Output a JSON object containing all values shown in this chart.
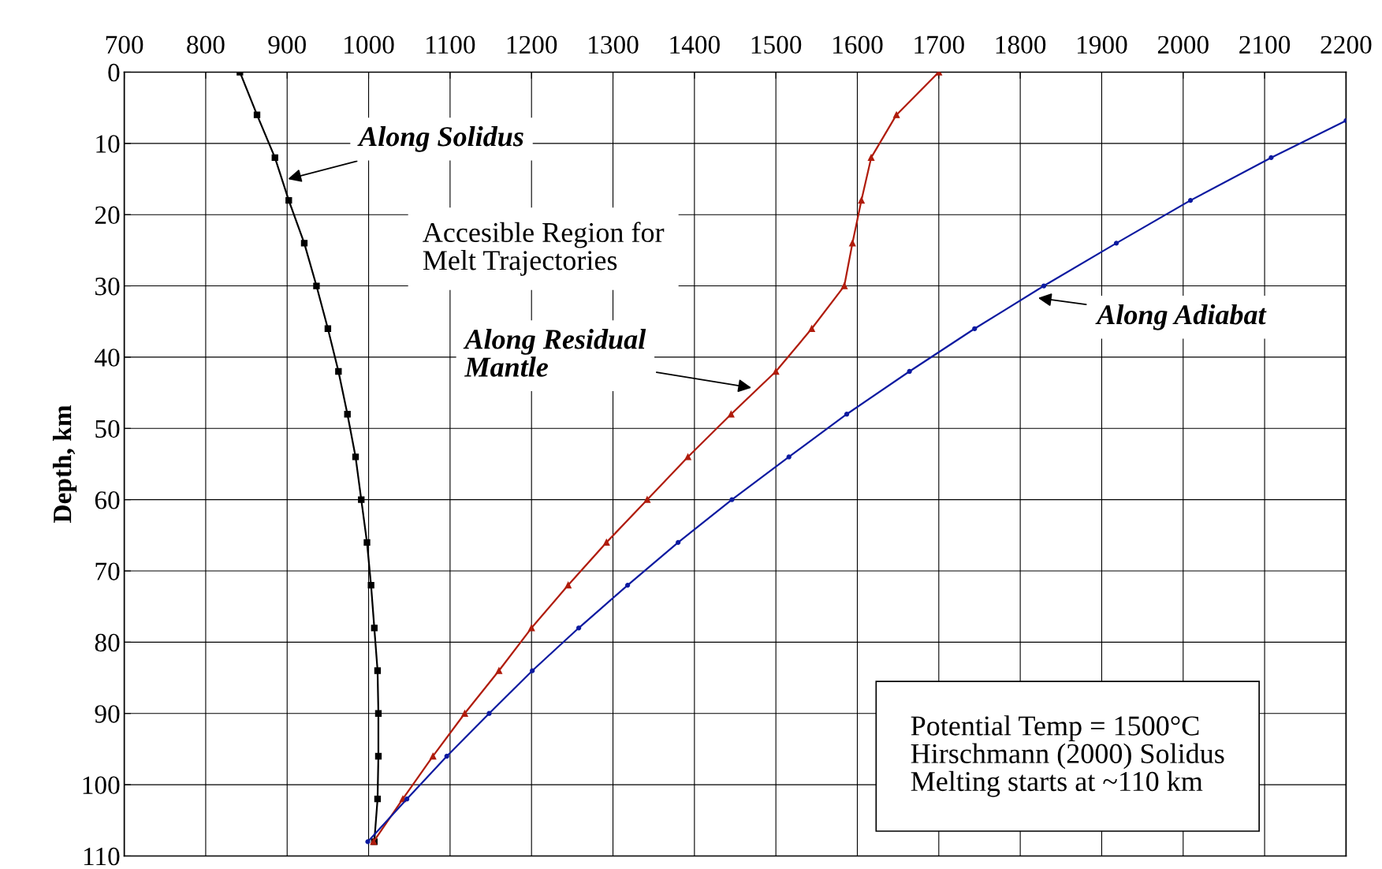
{
  "chart_data": {
    "type": "line",
    "ylabel": "Depth, km",
    "xlim": [
      700,
      2200
    ],
    "xticks": [
      700,
      800,
      900,
      1000,
      1100,
      1200,
      1300,
      1400,
      1500,
      1600,
      1700,
      1800,
      1900,
      2000,
      2100,
      2200
    ],
    "ylim": [
      110,
      0
    ],
    "yticks": [
      0,
      10,
      20,
      30,
      40,
      50,
      60,
      70,
      80,
      90,
      100,
      110
    ],
    "grid": true,
    "line_style": "solid",
    "series": [
      {
        "color": "#000000",
        "marker": "square",
        "x": [
          842,
          863,
          885,
          902,
          921,
          936,
          950,
          963,
          974,
          984,
          991,
          998,
          1003,
          1007,
          1011,
          1012,
          1012,
          1011,
          1007
        ],
        "values": [
          0,
          6,
          12,
          18,
          24,
          30,
          36,
          42,
          48,
          54,
          60,
          66,
          72,
          78,
          84,
          90,
          96,
          102,
          108
        ]
      },
      {
        "color": "#b01c0c",
        "marker": "triangle",
        "x": [
          1700,
          1648,
          1617,
          1605,
          1594,
          1584,
          1544,
          1500,
          1445,
          1392,
          1342,
          1292,
          1245,
          1200,
          1160,
          1118,
          1079,
          1042,
          1006
        ],
        "values": [
          0,
          6,
          12,
          18,
          24,
          30,
          36,
          42,
          48,
          54,
          60,
          66,
          72,
          78,
          84,
          90,
          96,
          102,
          108
        ]
      },
      {
        "color": "#0c1aa0",
        "marker": "circle",
        "x": [
          2200,
          2108,
          2009,
          1918,
          1829,
          1744,
          1664,
          1587,
          1516,
          1446,
          1380,
          1318,
          1258,
          1201,
          1148,
          1096,
          1047,
          999
        ],
        "values": [
          6.8,
          12,
          18,
          24,
          30,
          36,
          42,
          48,
          54,
          60,
          66,
          72,
          78,
          84,
          90,
          96,
          102,
          108
        ]
      }
    ],
    "annotations": [
      "Along Solidus",
      "Accesible Region for\nMelt Trajectories",
      "Along Residual\nMantle",
      "Along Adiabat",
      "Potential Temp = 1500°C\nHirschmann (2000) Solidus\nMelting starts at ~110 km"
    ]
  }
}
